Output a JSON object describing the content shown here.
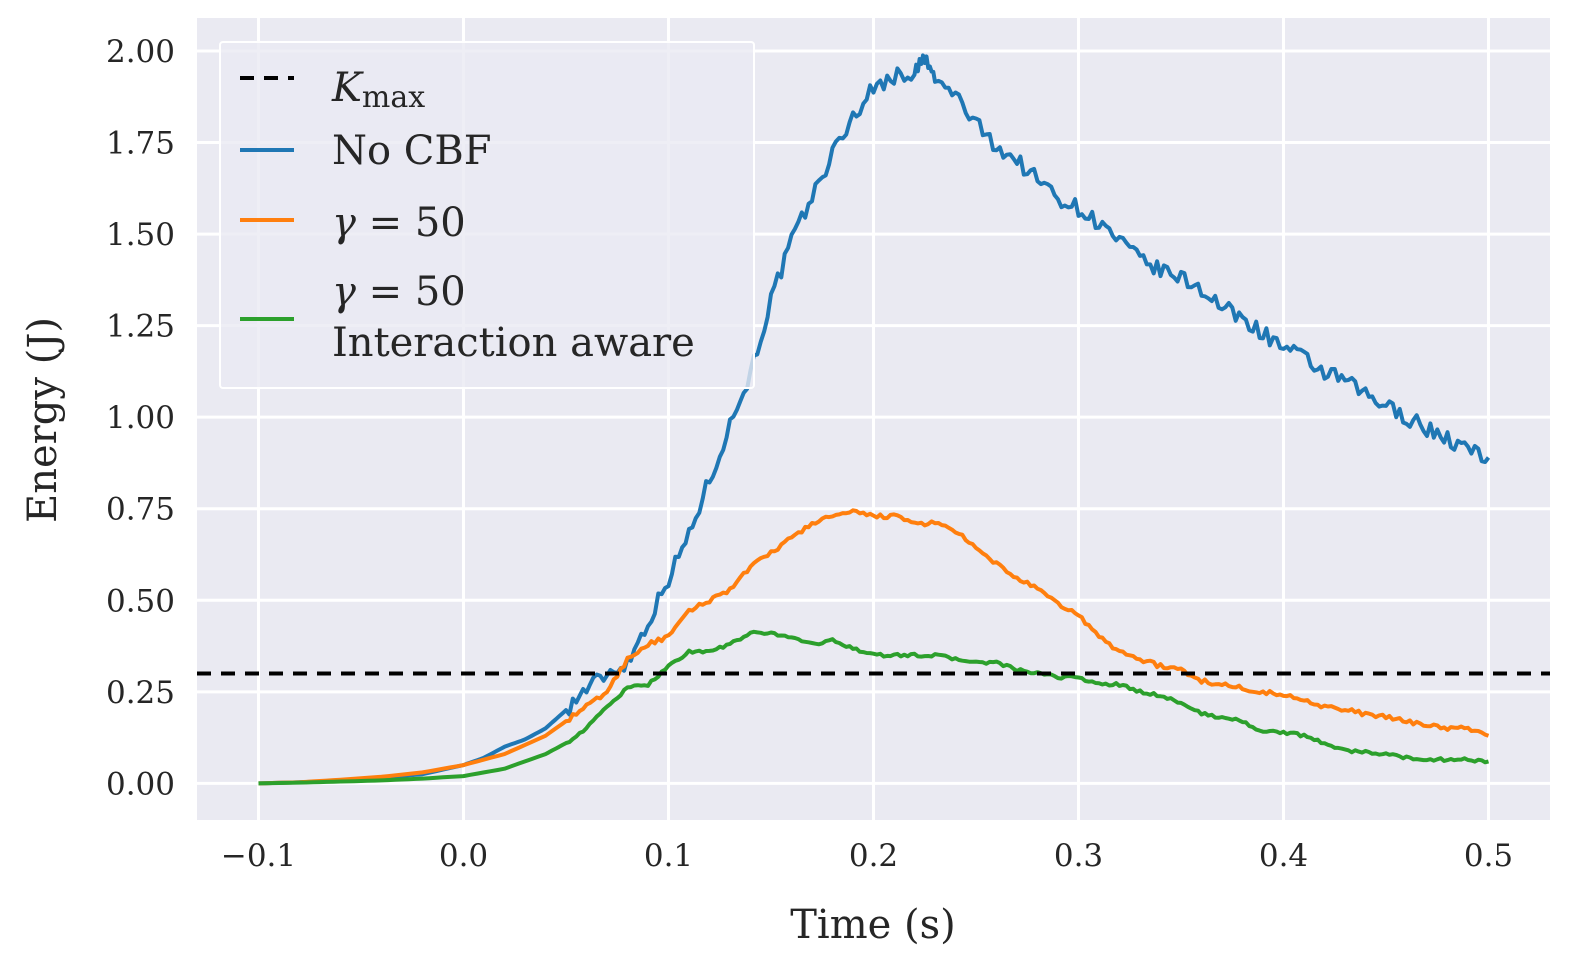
{
  "chart_data": {
    "type": "line",
    "title": "",
    "xlabel": "Time (s)",
    "ylabel": "Energy (J)",
    "xlim": [
      -0.13,
      0.53
    ],
    "ylim": [
      -0.1,
      2.09
    ],
    "xticks": [
      -0.1,
      0.0,
      0.1,
      0.2,
      0.3,
      0.4,
      0.5
    ],
    "xtick_labels": [
      "−0.1",
      "0.0",
      "0.1",
      "0.2",
      "0.3",
      "0.4",
      "0.5"
    ],
    "yticks": [
      0.0,
      0.25,
      0.5,
      0.75,
      1.0,
      1.25,
      1.5,
      1.75,
      2.0
    ],
    "ytick_labels": [
      "0.00",
      "0.25",
      "0.50",
      "0.75",
      "1.00",
      "1.25",
      "1.50",
      "1.75",
      "2.00"
    ],
    "grid": true,
    "legend_position": "upper-left",
    "hline": {
      "name": "K_max",
      "value": 0.3,
      "color": "#000000",
      "style": "dashed"
    },
    "legend": [
      {
        "key": "kmax",
        "label_main": "K",
        "label_sub": "max",
        "color": "#000000",
        "style": "dashed"
      },
      {
        "key": "nocbf",
        "label": "No CBF",
        "color": "#1f77b4",
        "style": "solid"
      },
      {
        "key": "gamma",
        "label_sym": "γ",
        "label_rest": " = 50",
        "color": "#ff7f0e",
        "style": "solid"
      },
      {
        "key": "gamma_ia",
        "label_sym": "γ",
        "label_rest": " = 50",
        "label_line2": "Interaction aware",
        "color": "#2ca02c",
        "style": "solid"
      }
    ],
    "series": [
      {
        "name": "No CBF",
        "color": "#1f77b4",
        "x": [
          -0.1,
          -0.08,
          -0.06,
          -0.04,
          -0.02,
          0.0,
          0.01,
          0.02,
          0.03,
          0.04,
          0.05,
          0.06,
          0.07,
          0.08,
          0.09,
          0.1,
          0.11,
          0.12,
          0.13,
          0.14,
          0.15,
          0.16,
          0.17,
          0.18,
          0.19,
          0.2,
          0.21,
          0.22,
          0.225,
          0.23,
          0.24,
          0.25,
          0.26,
          0.27,
          0.28,
          0.29,
          0.3,
          0.31,
          0.32,
          0.33,
          0.34,
          0.35,
          0.36,
          0.37,
          0.38,
          0.39,
          0.4,
          0.41,
          0.42,
          0.43,
          0.44,
          0.45,
          0.46,
          0.47,
          0.48,
          0.49,
          0.5
        ],
        "y": [
          0.0,
          0.003,
          0.008,
          0.015,
          0.025,
          0.05,
          0.07,
          0.1,
          0.12,
          0.15,
          0.2,
          0.26,
          0.3,
          0.33,
          0.44,
          0.56,
          0.68,
          0.83,
          0.98,
          1.12,
          1.32,
          1.48,
          1.6,
          1.72,
          1.82,
          1.9,
          1.93,
          1.94,
          1.98,
          1.92,
          1.88,
          1.8,
          1.74,
          1.7,
          1.65,
          1.6,
          1.57,
          1.53,
          1.48,
          1.43,
          1.4,
          1.38,
          1.35,
          1.3,
          1.27,
          1.23,
          1.19,
          1.16,
          1.12,
          1.1,
          1.06,
          1.03,
          1.0,
          0.97,
          0.94,
          0.91,
          0.89
        ]
      },
      {
        "name": "γ = 50",
        "color": "#ff7f0e",
        "x": [
          -0.1,
          -0.08,
          -0.06,
          -0.04,
          -0.02,
          0.0,
          0.02,
          0.04,
          0.05,
          0.06,
          0.07,
          0.08,
          0.09,
          0.1,
          0.11,
          0.12,
          0.13,
          0.14,
          0.15,
          0.16,
          0.17,
          0.18,
          0.19,
          0.2,
          0.21,
          0.22,
          0.23,
          0.24,
          0.25,
          0.26,
          0.27,
          0.28,
          0.29,
          0.3,
          0.31,
          0.32,
          0.33,
          0.34,
          0.35,
          0.36,
          0.37,
          0.38,
          0.39,
          0.4,
          0.41,
          0.42,
          0.43,
          0.44,
          0.45,
          0.46,
          0.47,
          0.48,
          0.49,
          0.5
        ],
        "y": [
          0.0,
          0.003,
          0.01,
          0.018,
          0.03,
          0.05,
          0.08,
          0.13,
          0.17,
          0.21,
          0.25,
          0.34,
          0.38,
          0.4,
          0.47,
          0.5,
          0.53,
          0.59,
          0.63,
          0.67,
          0.71,
          0.73,
          0.74,
          0.73,
          0.73,
          0.71,
          0.71,
          0.69,
          0.64,
          0.6,
          0.56,
          0.53,
          0.49,
          0.46,
          0.4,
          0.36,
          0.34,
          0.32,
          0.31,
          0.28,
          0.27,
          0.26,
          0.25,
          0.24,
          0.23,
          0.21,
          0.2,
          0.19,
          0.18,
          0.17,
          0.16,
          0.15,
          0.15,
          0.13
        ]
      },
      {
        "name": "γ = 50 Interaction aware",
        "color": "#2ca02c",
        "x": [
          -0.1,
          -0.08,
          -0.06,
          -0.04,
          -0.02,
          0.0,
          0.02,
          0.04,
          0.05,
          0.06,
          0.07,
          0.08,
          0.09,
          0.1,
          0.11,
          0.12,
          0.13,
          0.14,
          0.15,
          0.16,
          0.17,
          0.18,
          0.19,
          0.2,
          0.21,
          0.22,
          0.23,
          0.24,
          0.25,
          0.26,
          0.27,
          0.28,
          0.29,
          0.3,
          0.31,
          0.32,
          0.33,
          0.34,
          0.35,
          0.36,
          0.37,
          0.38,
          0.39,
          0.4,
          0.41,
          0.42,
          0.43,
          0.44,
          0.45,
          0.46,
          0.47,
          0.48,
          0.49,
          0.5
        ],
        "y": [
          0.0,
          0.002,
          0.005,
          0.008,
          0.013,
          0.02,
          0.04,
          0.08,
          0.11,
          0.15,
          0.21,
          0.26,
          0.27,
          0.32,
          0.36,
          0.36,
          0.38,
          0.41,
          0.41,
          0.4,
          0.38,
          0.39,
          0.37,
          0.35,
          0.35,
          0.35,
          0.35,
          0.34,
          0.33,
          0.33,
          0.31,
          0.3,
          0.29,
          0.29,
          0.27,
          0.27,
          0.25,
          0.24,
          0.22,
          0.19,
          0.18,
          0.17,
          0.14,
          0.14,
          0.13,
          0.11,
          0.09,
          0.085,
          0.08,
          0.07,
          0.065,
          0.065,
          0.065,
          0.06
        ]
      }
    ]
  }
}
